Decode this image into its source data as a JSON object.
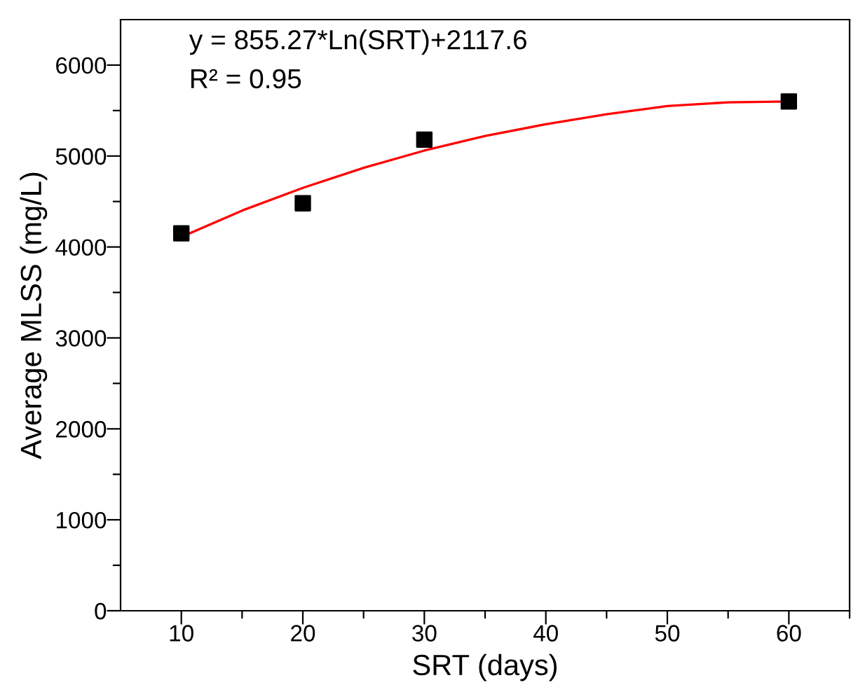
{
  "chart_data": {
    "type": "scatter",
    "xlabel": "SRT (days)",
    "ylabel": "Average MLSS (mg/L)",
    "xlim": [
      5,
      65
    ],
    "ylim": [
      0,
      6500
    ],
    "xticks": [
      10,
      {
        "value": 15,
        "label": null
      },
      20,
      {
        "value": 25,
        "label": null
      },
      30,
      {
        "value": 35,
        "label": null
      },
      40,
      {
        "value": 45,
        "label": null
      },
      50,
      {
        "value": 55,
        "label": null
      },
      60,
      {
        "value": 65,
        "label": null
      }
    ],
    "yticks": [
      0,
      {
        "value": 500,
        "label": null
      },
      1000,
      {
        "value": 1500,
        "label": null
      },
      2000,
      {
        "value": 2500,
        "label": null
      },
      3000,
      {
        "value": 3500,
        "label": null
      },
      4000,
      {
        "value": 4500,
        "label": null
      },
      5000,
      {
        "value": 5500,
        "label": null
      },
      6000
    ],
    "marker": "square",
    "grid": false,
    "legend": false,
    "series": [
      {
        "color": "#000000",
        "x": [
          10,
          20,
          30,
          60
        ],
        "values": [
          4150,
          4480,
          5180,
          5600
        ]
      },
      {
        "type": "line",
        "color": "#ff0000",
        "marker": "none",
        "x": [
          10,
          15,
          20,
          25,
          30,
          35,
          40,
          45,
          50,
          55,
          60
        ],
        "values": [
          4110,
          4400,
          4650,
          4870,
          5060,
          5220,
          5350,
          5460,
          5550,
          5590,
          5600
        ]
      }
    ],
    "annotations": [
      "y = 855.27*Ln(SRT)+2117.6",
      "R² = 0.95"
    ]
  }
}
